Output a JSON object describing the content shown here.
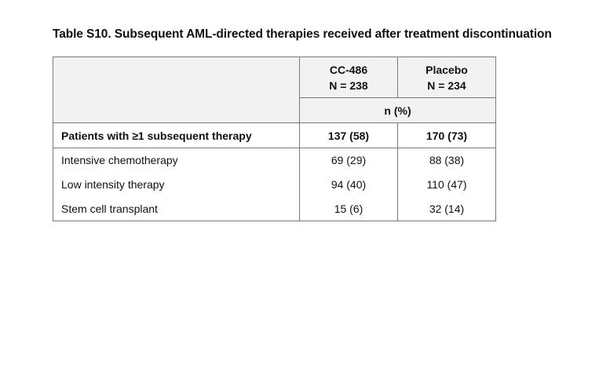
{
  "title": "Table S10. Subsequent AML-directed therapies received after treatment discontinuation",
  "columns": [
    {
      "name": "CC-486",
      "n": "N = 238"
    },
    {
      "name": "Placebo",
      "n": "N = 234"
    }
  ],
  "unit_label": "n (%)",
  "summary_row": {
    "label": "Patients with ≥1 subsequent therapy",
    "values": [
      "137 (58)",
      "170 (73)"
    ]
  },
  "rows": [
    {
      "label": "Intensive chemotherapy",
      "values": [
        "69 (29)",
        "88 (38)"
      ]
    },
    {
      "label": "Low intensity therapy",
      "values": [
        "94 (40)",
        "110 (47)"
      ]
    },
    {
      "label": "Stem cell transplant",
      "values": [
        "15 (6)",
        "32 (14)"
      ]
    }
  ]
}
